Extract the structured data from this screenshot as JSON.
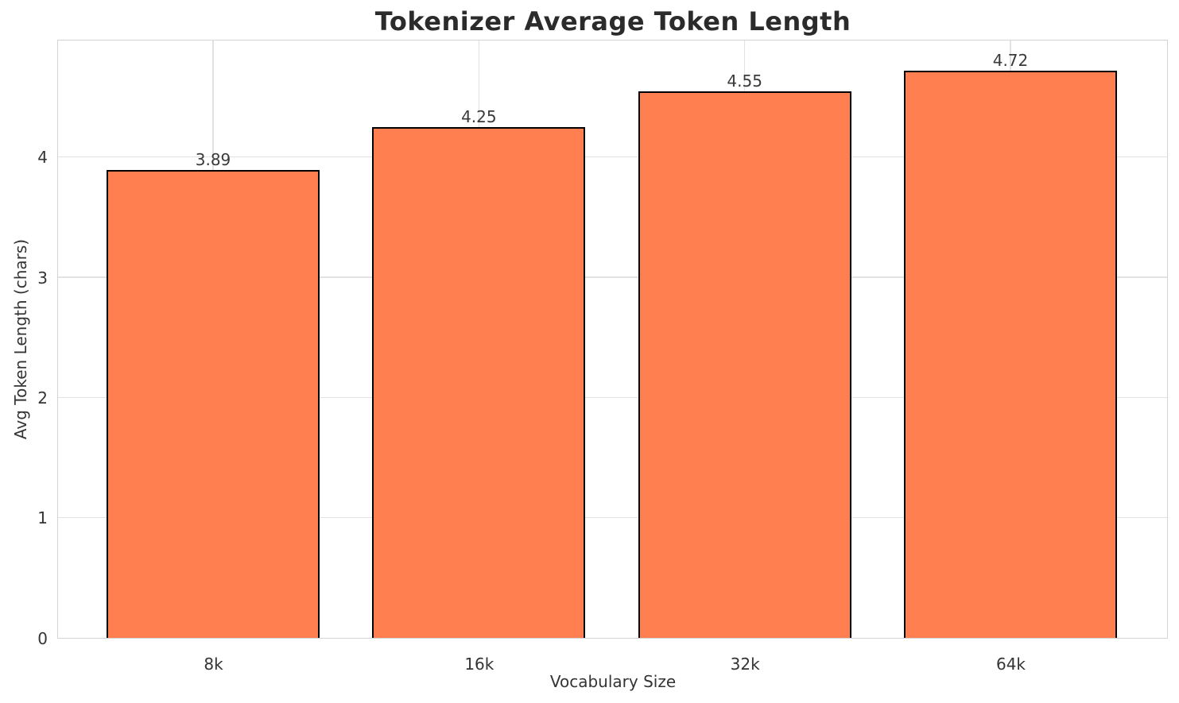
{
  "chart_data": {
    "type": "bar",
    "title": "Tokenizer Average Token Length",
    "xlabel": "Vocabulary Size",
    "ylabel": "Avg Token Length (chars)",
    "categories": [
      "8k",
      "16k",
      "32k",
      "64k"
    ],
    "values": [
      3.89,
      4.25,
      4.55,
      4.72
    ],
    "value_labels": [
      "3.89",
      "4.25",
      "4.55",
      "4.72"
    ],
    "yticks": [
      0,
      1,
      2,
      3,
      4
    ],
    "ylim": [
      0,
      4.97
    ],
    "grid": true,
    "legend": "none",
    "colors": {
      "bar_fill": "#FF7F50",
      "bar_edge": "#000000",
      "grid_line": "#e2e2e2",
      "spine": "#d4d4d4",
      "title_text": "#2b2b2b",
      "tick_text": "#343434"
    }
  }
}
